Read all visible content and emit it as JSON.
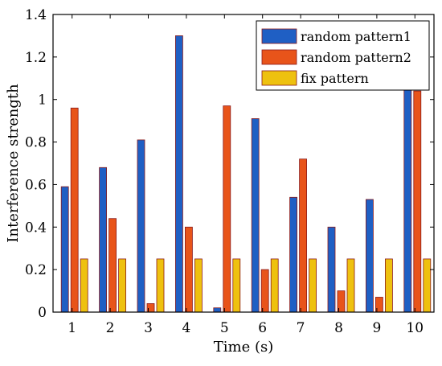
{
  "chart_data": {
    "type": "bar",
    "title": "",
    "xlabel": "Time (s)",
    "ylabel": "Interference strength",
    "categories": [
      "1",
      "2",
      "3",
      "4",
      "5",
      "6",
      "7",
      "8",
      "9",
      "10"
    ],
    "ylim": [
      0,
      1.4
    ],
    "yticks": [
      "0",
      "0.2",
      "0.4",
      "0.6",
      "0.8",
      "1",
      "1.2",
      "1.4"
    ],
    "grid": false,
    "legend_position": "top-right",
    "series": [
      {
        "name": "random pattern1",
        "color": "#1f5fc4",
        "values": [
          0.59,
          0.68,
          0.81,
          1.3,
          0.02,
          0.91,
          0.54,
          0.4,
          0.53,
          1.11
        ]
      },
      {
        "name": "random pattern2",
        "color": "#e8541a",
        "values": [
          0.96,
          0.44,
          0.04,
          0.4,
          0.97,
          0.2,
          0.72,
          0.1,
          0.07,
          1.04
        ]
      },
      {
        "name": "fix pattern",
        "color": "#eec10f",
        "values": [
          0.25,
          0.25,
          0.25,
          0.25,
          0.25,
          0.25,
          0.25,
          0.25,
          0.25,
          0.25
        ]
      }
    ]
  }
}
